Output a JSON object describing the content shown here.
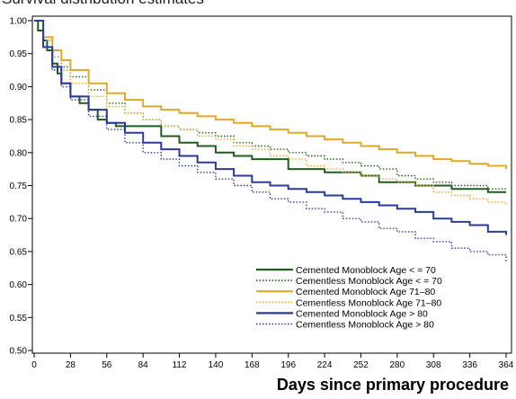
{
  "chart_data": {
    "type": "line",
    "step": true,
    "title": "Survival distribution estimates",
    "xlabel": "Days since primary procedure",
    "ylabel": "",
    "xlim": [
      0,
      364
    ],
    "ylim": [
      0.5,
      1.0
    ],
    "x_ticks": [
      0,
      28,
      56,
      84,
      112,
      140,
      168,
      196,
      224,
      252,
      280,
      308,
      336,
      364
    ],
    "y_ticks": [
      0.5,
      0.55,
      0.6,
      0.65,
      0.7,
      0.75,
      0.8,
      0.85,
      0.9,
      0.95,
      1.0
    ],
    "y_tick_labels": [
      "0.50",
      "0.55",
      "0.60",
      "0.65",
      "0.70",
      "0.75",
      "0.80",
      "0.85",
      "0.90",
      "0.95",
      "1.00"
    ],
    "grid": false,
    "legend_position": "bottom-right",
    "series": [
      {
        "name": "Cemented Monoblock Age < = 70",
        "color": "#1f5c1f",
        "dash": "solid",
        "x": [
          0,
          3,
          7,
          10,
          14,
          18,
          21,
          28,
          35,
          42,
          49,
          56,
          63,
          70,
          84,
          98,
          112,
          126,
          140,
          154,
          168,
          182,
          196,
          210,
          224,
          238,
          252,
          266,
          280,
          294,
          308,
          322,
          336,
          350,
          364
        ],
        "y": [
          1.0,
          0.985,
          0.97,
          0.955,
          0.935,
          0.92,
          0.905,
          0.885,
          0.875,
          0.865,
          0.85,
          0.845,
          0.84,
          0.84,
          0.84,
          0.825,
          0.815,
          0.81,
          0.8,
          0.795,
          0.79,
          0.79,
          0.775,
          0.775,
          0.77,
          0.77,
          0.765,
          0.755,
          0.755,
          0.75,
          0.75,
          0.745,
          0.745,
          0.74,
          0.74
        ]
      },
      {
        "name": "Cementless Monoblock Age < = 70",
        "color": "#1f5c1f",
        "dash": "dotted",
        "x": [
          0,
          7,
          14,
          21,
          28,
          42,
          56,
          70,
          84,
          98,
          112,
          126,
          140,
          154,
          168,
          182,
          196,
          210,
          224,
          238,
          252,
          266,
          280,
          294,
          308,
          322,
          336,
          350,
          364
        ],
        "y": [
          1.0,
          0.97,
          0.945,
          0.93,
          0.915,
          0.895,
          0.875,
          0.86,
          0.85,
          0.84,
          0.835,
          0.83,
          0.825,
          0.815,
          0.81,
          0.805,
          0.8,
          0.795,
          0.79,
          0.785,
          0.78,
          0.775,
          0.765,
          0.76,
          0.755,
          0.75,
          0.75,
          0.745,
          0.745
        ]
      },
      {
        "name": "Cemented Monoblock Age 71–80",
        "color": "#e0a828",
        "dash": "solid",
        "x": [
          0,
          7,
          14,
          21,
          28,
          42,
          56,
          70,
          84,
          98,
          112,
          126,
          140,
          154,
          168,
          182,
          196,
          210,
          224,
          238,
          252,
          266,
          280,
          294,
          308,
          322,
          336,
          350,
          364
        ],
        "y": [
          1.0,
          0.975,
          0.955,
          0.94,
          0.925,
          0.905,
          0.89,
          0.88,
          0.87,
          0.865,
          0.86,
          0.855,
          0.85,
          0.845,
          0.84,
          0.835,
          0.83,
          0.825,
          0.82,
          0.815,
          0.81,
          0.805,
          0.8,
          0.795,
          0.79,
          0.787,
          0.783,
          0.78,
          0.775
        ]
      },
      {
        "name": "Cementless Monoblock Age 71–80",
        "color": "#e0a828",
        "dash": "dotted",
        "x": [
          0,
          7,
          14,
          21,
          28,
          42,
          56,
          70,
          84,
          98,
          112,
          126,
          140,
          154,
          168,
          182,
          196,
          210,
          224,
          238,
          252,
          266,
          280,
          294,
          308,
          322,
          336,
          350,
          364
        ],
        "y": [
          1.0,
          0.97,
          0.945,
          0.925,
          0.905,
          0.885,
          0.87,
          0.86,
          0.85,
          0.84,
          0.835,
          0.825,
          0.82,
          0.81,
          0.805,
          0.795,
          0.79,
          0.78,
          0.775,
          0.77,
          0.765,
          0.76,
          0.755,
          0.75,
          0.74,
          0.735,
          0.73,
          0.725,
          0.72
        ]
      },
      {
        "name": "Cemented Monoblock Age > 80",
        "color": "#2a3a9a",
        "dash": "solid",
        "x": [
          0,
          7,
          14,
          21,
          28,
          42,
          56,
          70,
          84,
          98,
          112,
          126,
          140,
          154,
          168,
          182,
          196,
          210,
          224,
          238,
          252,
          266,
          280,
          294,
          308,
          322,
          336,
          350,
          364
        ],
        "y": [
          1.0,
          0.96,
          0.93,
          0.905,
          0.885,
          0.865,
          0.845,
          0.83,
          0.815,
          0.805,
          0.795,
          0.785,
          0.775,
          0.765,
          0.755,
          0.75,
          0.745,
          0.74,
          0.735,
          0.73,
          0.725,
          0.72,
          0.715,
          0.71,
          0.7,
          0.695,
          0.69,
          0.68,
          0.675
        ]
      },
      {
        "name": "Cementless Monoblock Age > 80",
        "color": "#2a3a9a",
        "dash": "dotted",
        "x": [
          0,
          7,
          14,
          21,
          28,
          42,
          56,
          70,
          84,
          98,
          112,
          126,
          140,
          154,
          168,
          182,
          196,
          210,
          224,
          238,
          252,
          266,
          280,
          294,
          308,
          322,
          336,
          350,
          364
        ],
        "y": [
          1.0,
          0.96,
          0.925,
          0.9,
          0.88,
          0.855,
          0.835,
          0.815,
          0.8,
          0.79,
          0.78,
          0.77,
          0.76,
          0.75,
          0.74,
          0.73,
          0.725,
          0.715,
          0.71,
          0.7,
          0.695,
          0.685,
          0.68,
          0.67,
          0.665,
          0.655,
          0.65,
          0.645,
          0.635
        ]
      }
    ]
  }
}
